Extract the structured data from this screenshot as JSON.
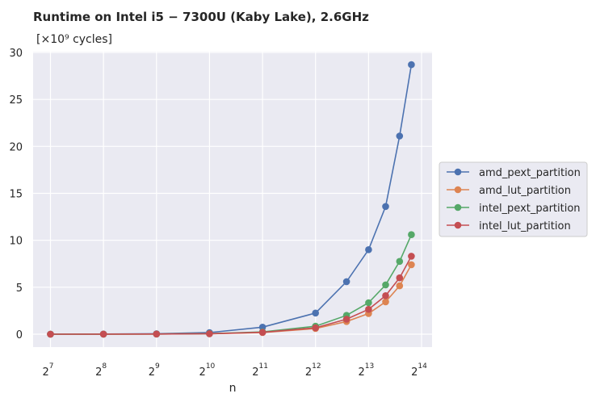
{
  "chart_data": {
    "type": "line",
    "title": "Runtime on Intel i5 − 7300U (Kaby Lake),  2.6GHz",
    "unit_label": "[×10⁹ cycles]",
    "xlabel": "n",
    "ylabel": "",
    "x_scale": "log2",
    "x": [
      128,
      256,
      512,
      1024,
      2048,
      4096,
      6144,
      8192,
      10240,
      12288,
      14336
    ],
    "x_ticks": [
      {
        "base": "2",
        "exp": "7"
      },
      {
        "base": "2",
        "exp": "8"
      },
      {
        "base": "2",
        "exp": "9"
      },
      {
        "base": "2",
        "exp": "10"
      },
      {
        "base": "2",
        "exp": "11"
      },
      {
        "base": "2",
        "exp": "12"
      },
      {
        "base": "2",
        "exp": "13"
      },
      {
        "base": "2",
        "exp": "14"
      }
    ],
    "y_ticks": [
      "0",
      "5",
      "10",
      "15",
      "20",
      "25",
      "30"
    ],
    "ylim": [
      -1.3,
      30
    ],
    "grid": true,
    "legend_position": "right-outside",
    "series": [
      {
        "name": "amd_pext_partition",
        "color": "#4c72b0",
        "values": [
          0.01,
          0.02,
          0.05,
          0.17,
          0.75,
          2.25,
          5.6,
          9.0,
          13.6,
          21.1,
          28.7
        ]
      },
      {
        "name": "amd_lut_partition",
        "color": "#dd8452",
        "values": [
          0.0,
          0.01,
          0.02,
          0.05,
          0.18,
          0.6,
          1.35,
          2.2,
          3.45,
          5.15,
          7.4
        ]
      },
      {
        "name": "intel_pext_partition",
        "color": "#55a868",
        "values": [
          0.0,
          0.01,
          0.02,
          0.06,
          0.24,
          0.85,
          2.0,
          3.35,
          5.25,
          7.75,
          10.6
        ]
      },
      {
        "name": "intel_lut_partition",
        "color": "#c44e52",
        "values": [
          0.0,
          0.01,
          0.02,
          0.05,
          0.2,
          0.68,
          1.6,
          2.65,
          4.1,
          6.0,
          8.3
        ]
      }
    ]
  }
}
